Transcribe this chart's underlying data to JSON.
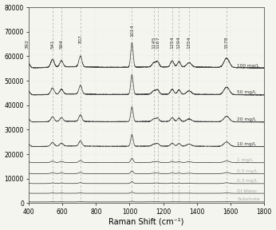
{
  "xlabel": "Raman Shift (cm⁻¹)",
  "xlim": [
    400,
    1800
  ],
  "ylim": [
    0,
    80000
  ],
  "yticks": [
    0,
    10000,
    20000,
    30000,
    40000,
    50000,
    60000,
    70000,
    80000
  ],
  "xticks": [
    400,
    600,
    800,
    1000,
    1200,
    1400,
    1600,
    1800
  ],
  "dashed_lines": [
    392,
    541,
    594,
    707,
    1014,
    1145,
    1167,
    1254,
    1294,
    1354,
    1578
  ],
  "peak_labels": [
    "392",
    "541",
    "594",
    "707",
    "1014",
    "1145",
    "1167",
    "1254",
    "1294",
    "1354",
    "1578"
  ],
  "spectra_labels": [
    "Substrate",
    "DI Water",
    "0.3 mg/L",
    "0.5 mg/L",
    "1 mg/L",
    "10 mg/L",
    "20 mg/L",
    "50 mg/L",
    "100 mg/L"
  ],
  "offsets": [
    500,
    4000,
    8000,
    12000,
    16500,
    23000,
    33000,
    44000,
    55000
  ],
  "scales": [
    0.04,
    0.06,
    0.1,
    0.14,
    0.22,
    0.6,
    0.75,
    1.0,
    1.25
  ],
  "line_color": "#444444",
  "dashed_color": "#999999",
  "background_color": "#f5f5f0",
  "label_color_dark": "#333333",
  "label_color_light": "#aaaaaa",
  "figsize": [
    3.46,
    2.88
  ],
  "dpi": 100
}
